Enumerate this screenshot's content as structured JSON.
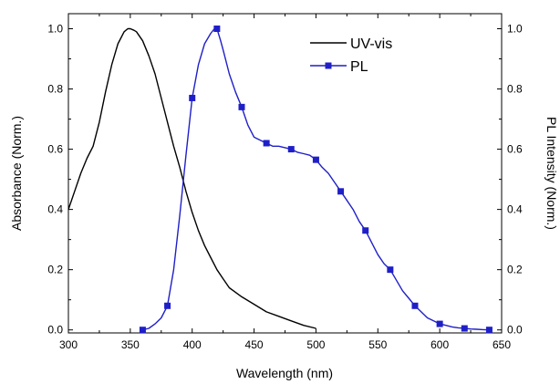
{
  "chart_data": {
    "type": "line",
    "xlabel": "Wavelength (nm)",
    "ylabel_left": "Absorbance (Norm.)",
    "ylabel_right": "PL Intensity (Norm.)",
    "xlim": [
      300,
      650
    ],
    "ylim_left": [
      -0.01,
      1.05
    ],
    "ylim_right": [
      -0.01,
      1.05
    ],
    "x_ticks": [
      300,
      350,
      400,
      450,
      500,
      550,
      600,
      650
    ],
    "y_ticks": [
      0.0,
      0.2,
      0.4,
      0.6,
      0.8,
      1.0
    ],
    "x_tick_labels": [
      "300",
      "350",
      "400",
      "450",
      "500",
      "550",
      "600",
      "650"
    ],
    "y_tick_labels": [
      "0.0",
      "0.2",
      "0.4",
      "0.6",
      "0.8",
      "1.0"
    ],
    "grid": false,
    "legend_position": "top-right",
    "series": [
      {
        "name": "UV-vis",
        "axis": "left",
        "color": "#000000",
        "marker": "none",
        "x": [
          300,
          305,
          310,
          315,
          320,
          325,
          330,
          335,
          340,
          345,
          348,
          350,
          353,
          355,
          360,
          365,
          370,
          375,
          380,
          385,
          390,
          395,
          400,
          405,
          410,
          415,
          420,
          425,
          430,
          440,
          450,
          460,
          470,
          480,
          490,
          500
        ],
        "y": [
          0.4,
          0.46,
          0.52,
          0.57,
          0.61,
          0.69,
          0.79,
          0.88,
          0.95,
          0.99,
          1.0,
          1.0,
          0.995,
          0.99,
          0.96,
          0.91,
          0.85,
          0.77,
          0.69,
          0.61,
          0.54,
          0.46,
          0.39,
          0.33,
          0.28,
          0.24,
          0.2,
          0.17,
          0.14,
          0.11,
          0.085,
          0.06,
          0.045,
          0.03,
          0.015,
          0.005
        ]
      },
      {
        "name": "PL",
        "axis": "right",
        "color": "#1f1fc8",
        "marker": "square",
        "x": [
          360,
          365,
          370,
          375,
          380,
          385,
          390,
          395,
          400,
          405,
          410,
          415,
          418,
          420,
          423,
          425,
          430,
          435,
          440,
          445,
          450,
          455,
          460,
          465,
          470,
          475,
          480,
          485,
          490,
          495,
          500,
          505,
          510,
          515,
          520,
          525,
          530,
          535,
          540,
          545,
          550,
          555,
          560,
          565,
          570,
          575,
          580,
          585,
          590,
          595,
          600,
          605,
          610,
          615,
          620,
          625,
          630,
          635,
          640
        ],
        "y": [
          0.0,
          0.005,
          0.02,
          0.04,
          0.08,
          0.2,
          0.38,
          0.58,
          0.77,
          0.88,
          0.95,
          0.985,
          1.0,
          1.0,
          0.96,
          0.93,
          0.85,
          0.79,
          0.74,
          0.68,
          0.64,
          0.63,
          0.62,
          0.61,
          0.61,
          0.605,
          0.6,
          0.59,
          0.585,
          0.58,
          0.565,
          0.54,
          0.52,
          0.49,
          0.46,
          0.43,
          0.4,
          0.36,
          0.33,
          0.29,
          0.25,
          0.22,
          0.2,
          0.165,
          0.13,
          0.105,
          0.08,
          0.06,
          0.04,
          0.03,
          0.02,
          0.015,
          0.01,
          0.007,
          0.005,
          0.003,
          0.002,
          0.001,
          0.0
        ],
        "marker_x": [
          360,
          380,
          400,
          420,
          440,
          460,
          480,
          500,
          520,
          540,
          560,
          580,
          600,
          620,
          640
        ],
        "marker_y": [
          0.0,
          0.08,
          0.77,
          1.0,
          0.74,
          0.62,
          0.6,
          0.565,
          0.46,
          0.33,
          0.2,
          0.08,
          0.02,
          0.005,
          0.0
        ]
      }
    ]
  }
}
